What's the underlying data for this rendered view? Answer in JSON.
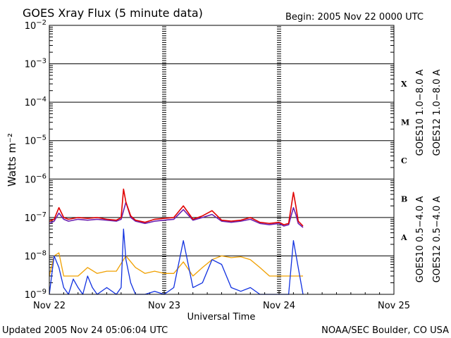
{
  "header": {
    "title": "GOES Xray Flux (5 minute data)",
    "begin": "Begin:  2005 Nov 22 0000 UTC"
  },
  "footer": {
    "updated": "Updated 2005 Nov 24 05:06:04 UTC",
    "credit": "NOAA/SEC Boulder, CO USA"
  },
  "colors": {
    "goes10_long": "#6a1fb0",
    "goes12_long": "#e00000",
    "goes10_short": "#f0a000",
    "goes12_short": "#1030e0"
  },
  "chart_data": {
    "type": "line",
    "title": "GOES Xray Flux (5 minute data)",
    "xlabel": "Universal Time",
    "ylabel": "Watts m⁻²",
    "yscale": "log",
    "ylim": [
      1e-09,
      0.01
    ],
    "xlim": [
      "2005-11-22 00:00",
      "2005-11-25 00:00"
    ],
    "x_tick_labels": [
      "Nov 22",
      "Nov 23",
      "Nov 24",
      "Nov 25"
    ],
    "y_tick_labels": [
      {
        "base": "10",
        "exp": "−2"
      },
      {
        "base": "10",
        "exp": "−3"
      },
      {
        "base": "10",
        "exp": "−4"
      },
      {
        "base": "10",
        "exp": "−5"
      },
      {
        "base": "10",
        "exp": "−6"
      },
      {
        "base": "10",
        "exp": "−7"
      },
      {
        "base": "10",
        "exp": "−8"
      },
      {
        "base": "10",
        "exp": "−9"
      }
    ],
    "flare_classes": [
      "X",
      "M",
      "C",
      "B",
      "A"
    ],
    "grid": true,
    "legend_position": "right (rotated)",
    "series": [
      {
        "name": "GOES10 1.0−8.0 A",
        "color_key": "goes10_long",
        "x_hours": [
          0,
          1,
          2,
          3,
          4,
          6,
          8,
          10,
          12,
          14,
          15,
          16,
          17,
          18,
          20,
          22,
          24,
          26,
          28,
          30,
          32,
          34,
          36,
          38,
          40,
          42,
          44,
          46,
          48,
          49,
          50,
          51,
          51.5,
          52,
          53
        ],
        "values": [
          7e-08,
          8e-08,
          1.3e-07,
          9e-08,
          8e-08,
          9e-08,
          8.5e-08,
          9e-08,
          8.5e-08,
          8e-08,
          9e-08,
          2.5e-07,
          1e-07,
          8e-08,
          7e-08,
          8e-08,
          8.5e-08,
          9e-08,
          1.6e-07,
          8.5e-08,
          1e-07,
          1.2e-07,
          8e-08,
          7.5e-08,
          8e-08,
          9e-08,
          7e-08,
          6.5e-08,
          7e-08,
          6e-08,
          6.5e-08,
          1.8e-07,
          1.2e-07,
          7e-08,
          5.5e-08
        ]
      },
      {
        "name": "GOES12 1.0−8.0 A",
        "color_key": "goes12_long",
        "x_hours": [
          0,
          1,
          2,
          3,
          4,
          6,
          8,
          10,
          12,
          14,
          15,
          15.5,
          16,
          17,
          18,
          20,
          22,
          24,
          26,
          28,
          30,
          32,
          34,
          36,
          38,
          40,
          42,
          44,
          46,
          48,
          49,
          50,
          51,
          51.5,
          52,
          53
        ],
        "values": [
          8e-08,
          9e-08,
          1.8e-07,
          1e-07,
          9e-08,
          1e-07,
          9.5e-08,
          1e-07,
          9e-08,
          8.5e-08,
          1e-07,
          5.5e-07,
          2.5e-07,
          1.1e-07,
          8.5e-08,
          7.5e-08,
          9e-08,
          9.5e-08,
          1e-07,
          2e-07,
          9e-08,
          1.1e-07,
          1.5e-07,
          8.5e-08,
          8e-08,
          8.5e-08,
          1e-07,
          7.5e-08,
          7e-08,
          7.5e-08,
          6.5e-08,
          7e-08,
          4.5e-07,
          2e-07,
          8e-08,
          6e-08
        ]
      },
      {
        "name": "GOES10 0.5−4.0 A",
        "color_key": "goes10_short",
        "x_hours": [
          0,
          1,
          2,
          3,
          4,
          6,
          8,
          10,
          12,
          14,
          16,
          18,
          20,
          22,
          24,
          26,
          28,
          30,
          32,
          34,
          36,
          38,
          40,
          42,
          44,
          46,
          48,
          50,
          51,
          52,
          53
        ],
        "values": [
          3e-09,
          1e-08,
          1.2e-08,
          3e-09,
          3e-09,
          3e-09,
          5e-09,
          3.5e-09,
          4e-09,
          4e-09,
          1e-08,
          5e-09,
          3.5e-09,
          4e-09,
          3.5e-09,
          3.5e-09,
          7e-09,
          3e-09,
          5e-09,
          8e-09,
          1e-08,
          9e-09,
          9.5e-09,
          8e-09,
          5e-09,
          3e-09,
          3e-09,
          3e-09,
          3e-09,
          3e-09,
          3e-09
        ]
      },
      {
        "name": "GOES12 0.5−4.0 A",
        "color_key": "goes12_short",
        "x_hours": [
          0,
          1,
          2,
          3,
          4,
          5,
          6,
          7,
          8,
          9,
          10,
          12,
          14,
          15,
          15.5,
          16,
          17,
          18,
          20,
          22,
          24,
          26,
          28,
          30,
          32,
          34,
          36,
          38,
          40,
          42,
          44,
          46,
          48,
          50,
          51,
          52,
          53
        ],
        "values": [
          1e-09,
          1e-08,
          5e-09,
          1.5e-09,
          1e-09,
          2.5e-09,
          1.5e-09,
          1e-09,
          3e-09,
          1.5e-09,
          1e-09,
          1.5e-09,
          1e-09,
          1.5e-09,
          5e-08,
          8e-09,
          2e-09,
          1e-09,
          1e-09,
          1.2e-09,
          1e-09,
          1.5e-09,
          2.5e-08,
          1.5e-09,
          2e-09,
          8e-09,
          6e-09,
          1.5e-09,
          1.2e-09,
          1.5e-09,
          1e-09,
          1e-09,
          1e-09,
          1e-09,
          2.5e-08,
          5e-09,
          1e-09
        ]
      }
    ]
  }
}
